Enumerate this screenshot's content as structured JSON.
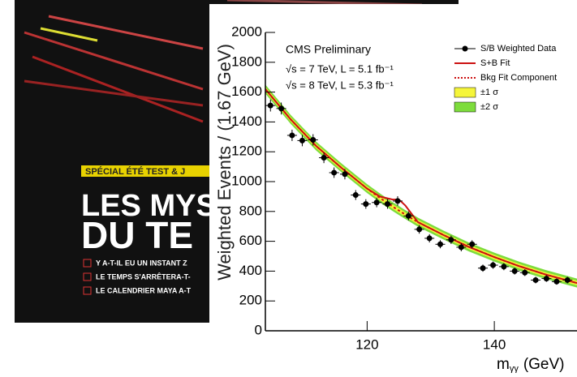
{
  "cover": {
    "banner": "SPÉCIAL ÉTÉ TEST & J",
    "headline": [
      "LES MYST",
      "DU TE"
    ],
    "bullets": [
      "Y A-T-IL EU UN INSTANT Z",
      "LE TEMPS S'ARRÊTERA-T-",
      "LE CALENDRIER MAYA A-T"
    ]
  },
  "chart_data": {
    "type": "scatter",
    "annotations": [
      "CMS Preliminary",
      "√s = 7 TeV, L = 5.1 fb⁻¹",
      "√s = 8 TeV, L = 5.3 fb⁻¹"
    ],
    "y_label": "Weighted Events / (1.67 GeV)",
    "x_label": {
      "symbol": "m",
      "subscript": "γγ",
      "unit": "(GeV)"
    },
    "xlim": [
      104,
      153
    ],
    "xticks": [
      120,
      140
    ],
    "ylim": [
      0,
      2000
    ],
    "yticks": [
      0,
      200,
      400,
      600,
      800,
      1000,
      1200,
      1400,
      1600,
      1800,
      2000
    ],
    "legend": "top-right",
    "series": [
      {
        "name": "S/B Weighted Data",
        "color": "#000000",
        "x": [
          104.8,
          106.5,
          108.2,
          109.8,
          111.5,
          113.2,
          114.8,
          116.5,
          118.2,
          119.8,
          121.5,
          123.2,
          124.8,
          126.5,
          128.2,
          129.8,
          131.5,
          133.2,
          134.8,
          136.5,
          138.2,
          139.8,
          141.5,
          143.2,
          144.8,
          146.5,
          148.2,
          149.8,
          151.5
        ],
        "values": [
          1510,
          1490,
          1310,
          1275,
          1280,
          1160,
          1060,
          1050,
          910,
          850,
          860,
          850,
          870,
          770,
          680,
          620,
          580,
          610,
          560,
          580,
          420,
          440,
          430,
          400,
          390,
          340,
          350,
          330,
          340
        ],
        "errors": [
          40,
          40,
          38,
          38,
          38,
          36,
          35,
          35,
          33,
          32,
          32,
          32,
          32,
          30,
          29,
          28,
          27,
          28,
          27,
          27,
          24,
          24,
          24,
          23,
          23,
          22,
          22,
          21,
          22
        ]
      },
      {
        "name": "S+B Fit",
        "color": "#cc1111",
        "x": [
          104,
          108,
          112,
          116,
          120,
          122,
          124,
          125,
          126,
          128,
          132,
          136,
          140,
          144,
          148,
          153
        ],
        "values": [
          1620,
          1416,
          1238,
          1091,
          953,
          900,
          880,
          880,
          840,
          728,
          642,
          562,
          494,
          432,
          378,
          320
        ]
      },
      {
        "name": "Bkg Fit Component",
        "color": "#cc1111",
        "x": [
          104,
          108,
          112,
          116,
          120,
          122,
          124,
          125,
          126,
          128,
          132,
          136,
          140,
          144,
          148,
          153
        ],
        "values": [
          1620,
          1416,
          1238,
          1091,
          953,
          891,
          833,
          806,
          779,
          728,
          642,
          562,
          494,
          432,
          378,
          320
        ]
      },
      {
        "name": "±1 σ",
        "color": "#f5f53a",
        "half_width": 15
      },
      {
        "name": "±2 σ",
        "color": "#7ddc3c",
        "half_width": 30
      }
    ]
  }
}
